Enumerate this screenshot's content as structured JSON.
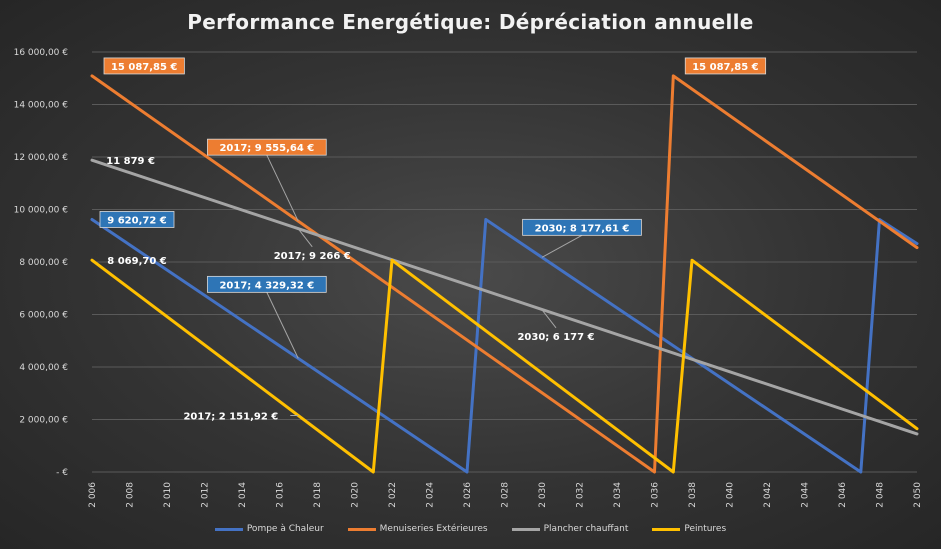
{
  "chart_data": {
    "type": "line",
    "title": "Performance Energétique: Dépréciation annuelle",
    "xlim": [
      2006,
      2050
    ],
    "ylim": [
      0,
      16000
    ],
    "y_ticks": [
      {
        "value": 0,
        "label": "-  €"
      },
      {
        "value": 2000,
        "label": "2 000,00 €"
      },
      {
        "value": 4000,
        "label": "4 000,00 €"
      },
      {
        "value": 6000,
        "label": "6 000,00 €"
      },
      {
        "value": 8000,
        "label": "8 000,00 €"
      },
      {
        "value": 10000,
        "label": "10 000,00 €"
      },
      {
        "value": 12000,
        "label": "12 000,00 €"
      },
      {
        "value": 14000,
        "label": "14 000,00 €"
      },
      {
        "value": 16000,
        "label": "16 000,00 €"
      }
    ],
    "x_ticks": [
      {
        "value": 2006,
        "label": "2 006"
      },
      {
        "value": 2008,
        "label": "2 008"
      },
      {
        "value": 2010,
        "label": "2 010"
      },
      {
        "value": 2012,
        "label": "2 012"
      },
      {
        "value": 2014,
        "label": "2 014"
      },
      {
        "value": 2016,
        "label": "2 016"
      },
      {
        "value": 2018,
        "label": "2 018"
      },
      {
        "value": 2020,
        "label": "2 020"
      },
      {
        "value": 2022,
        "label": "2 022"
      },
      {
        "value": 2024,
        "label": "2 024"
      },
      {
        "value": 2026,
        "label": "2 026"
      },
      {
        "value": 2028,
        "label": "2 028"
      },
      {
        "value": 2030,
        "label": "2 030"
      },
      {
        "value": 2032,
        "label": "2 032"
      },
      {
        "value": 2034,
        "label": "2 034"
      },
      {
        "value": 2036,
        "label": "2 036"
      },
      {
        "value": 2038,
        "label": "2 038"
      },
      {
        "value": 2040,
        "label": "2 040"
      },
      {
        "value": 2042,
        "label": "2 042"
      },
      {
        "value": 2044,
        "label": "2 044"
      },
      {
        "value": 2046,
        "label": "2 046"
      },
      {
        "value": 2048,
        "label": "2 048"
      },
      {
        "value": 2050,
        "label": "2 050"
      }
    ],
    "grid": true,
    "legend_position": "bottom",
    "series": [
      {
        "name": "Pompe à Chaleur",
        "color": "#4472c4",
        "points": [
          [
            2006,
            9620.72
          ],
          [
            2026,
            0
          ],
          [
            2027,
            9620.72
          ],
          [
            2047,
            0
          ],
          [
            2048,
            9620.72
          ],
          [
            2050,
            8700
          ]
        ]
      },
      {
        "name": "Menuiseries Extérieures",
        "color": "#ed7d31",
        "points": [
          [
            2006,
            15087.85
          ],
          [
            2036,
            0
          ],
          [
            2037,
            15087.85
          ],
          [
            2050,
            8550
          ]
        ]
      },
      {
        "name": "Plancher chauffant",
        "color": "#a5a5a5",
        "points": [
          [
            2006,
            11879
          ],
          [
            2050,
            1450
          ]
        ]
      },
      {
        "name": "Peintures",
        "color": "#ffc000",
        "points": [
          [
            2006,
            8069.7
          ],
          [
            2021,
            0
          ],
          [
            2022,
            8069.7
          ],
          [
            2037,
            0
          ],
          [
            2038,
            8069.7
          ],
          [
            2050,
            1650
          ]
        ]
      }
    ],
    "data_labels": [
      {
        "text": "15 087,85 €",
        "x": 2006,
        "y": 15087.85,
        "style": "box",
        "color": "#ed7d31",
        "anchor": "right-above"
      },
      {
        "text": "15 087,85 €",
        "x": 2037,
        "y": 15087.85,
        "style": "box",
        "color": "#ed7d31",
        "anchor": "right-above"
      },
      {
        "text": "2017;  9 555,64 €",
        "x": 2017,
        "y": 9555.64,
        "style": "box",
        "color": "#ed7d31",
        "anchor": "left-above"
      },
      {
        "text": "11 879 €",
        "x": 2006,
        "y": 11879,
        "style": "plain",
        "color": "#ffffff",
        "anchor": "right"
      },
      {
        "text": "2017;  9 266 €",
        "x": 2017,
        "y": 9266,
        "style": "plain",
        "color": "#ffffff",
        "anchor": "below"
      },
      {
        "text": "2030;  6 177 €",
        "x": 2030,
        "y": 6177,
        "style": "plain",
        "color": "#ffffff",
        "anchor": "below"
      },
      {
        "text": "9 620,72 €",
        "x": 2006,
        "y": 9620.72,
        "style": "box",
        "color": "#2e75b6",
        "anchor": "right"
      },
      {
        "text": "2017;  4 329,32 €",
        "x": 2017,
        "y": 4329.32,
        "style": "box",
        "color": "#2e75b6",
        "anchor": "left-above"
      },
      {
        "text": "2030;  8 177,61 €",
        "x": 2030,
        "y": 8177.61,
        "style": "box",
        "color": "#2e75b6",
        "anchor": "above"
      },
      {
        "text": "8 069,70 €",
        "x": 2006,
        "y": 8069.7,
        "style": "plain",
        "color": "#ffffff",
        "anchor": "right"
      },
      {
        "text": "2017;  2 151,92 €",
        "x": 2017,
        "y": 2151.92,
        "style": "plain",
        "color": "#ffffff",
        "anchor": "left"
      }
    ]
  }
}
